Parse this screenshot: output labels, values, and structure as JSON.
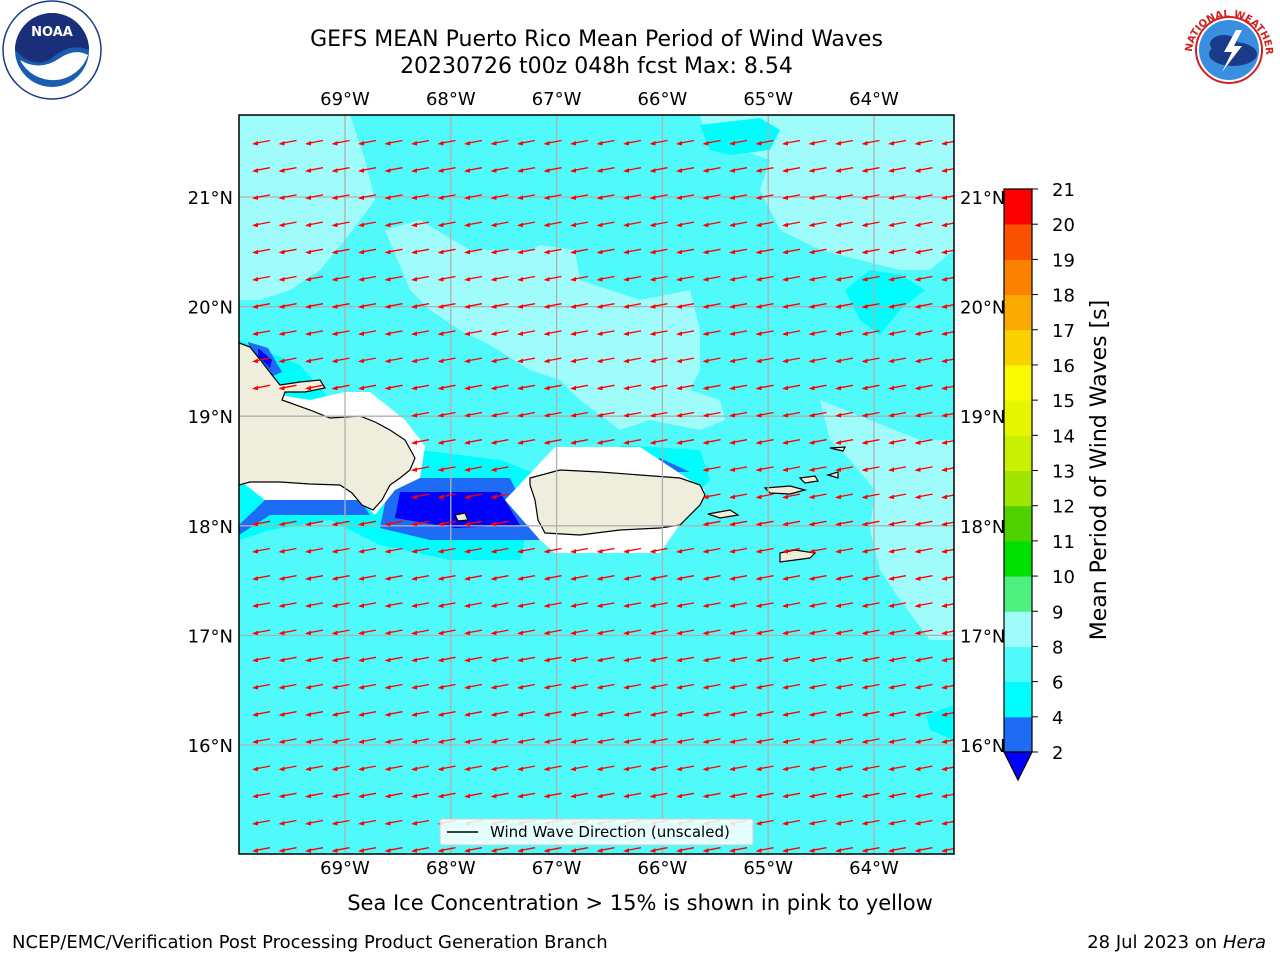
{
  "title": {
    "line1": "GEFS MEAN Puerto Rico Mean Period of Wind Waves",
    "line2": "20230726 t00z 048h fcst   Max: 8.54"
  },
  "map": {
    "lon_ticks": [
      "69°W",
      "68°W",
      "67°W",
      "66°W",
      "65°W",
      "64°W"
    ],
    "lat_ticks": [
      "21°N",
      "20°N",
      "19°N",
      "18°N",
      "17°N",
      "16°N"
    ],
    "legend_label": "Wind Wave Direction (unscaled)",
    "arrow_color": "#ff0000",
    "land_color": "#efeddc"
  },
  "colorbar": {
    "label": "Mean Period of Wind Waves [s]",
    "ticks": [
      "2",
      "4",
      "6",
      "8",
      "9",
      "10",
      "11",
      "12",
      "13",
      "14",
      "15",
      "16",
      "17",
      "18",
      "19",
      "20",
      "21"
    ],
    "colors": [
      "#1e6cf5",
      "#00fdfd",
      "#50fafa",
      "#a0fbfb",
      "#50f080",
      "#00e000",
      "#50d200",
      "#a0e600",
      "#c8f000",
      "#e6f500",
      "#fafa00",
      "#fad200",
      "#faaa00",
      "#fa8200",
      "#fa5000",
      "#fa2800",
      "#fa0000"
    ],
    "under_color": "#0000ff"
  },
  "note": "Sea Ice Concentration > 15% is shown in pink to yellow",
  "footer": {
    "left": "NCEP/EMC/Verification Post Processing Product Generation Branch",
    "right_prefix": "28 Jul 2023 on ",
    "right_host": "Hera"
  },
  "logos": {
    "noaa_text": "NOAA",
    "nws_text": "NATIONAL WEATHER SERVICE"
  }
}
